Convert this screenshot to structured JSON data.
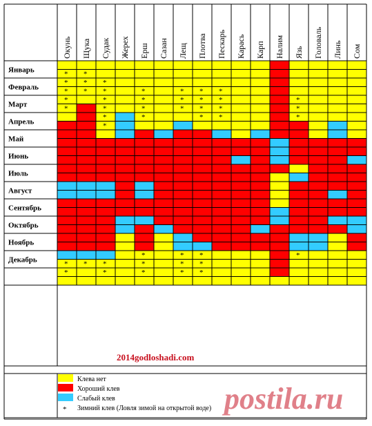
{
  "colors": {
    "none": "#ffff00",
    "good": "#ff0000",
    "weak": "#33ccff",
    "grid": "#000000"
  },
  "legend": [
    {
      "key": "none",
      "label": "Клева нет"
    },
    {
      "key": "good",
      "label": "Хороший клев"
    },
    {
      "key": "weak",
      "label": "Слабый клев"
    },
    {
      "key": "star",
      "symbol": "*",
      "label": "Зимний клев (Ловля зимой на открытой воде)"
    }
  ],
  "site_text": "2014godloshadi.com",
  "watermark": "postila.ru",
  "table": {
    "fish": [
      "Окунь",
      "Щука",
      "Судак",
      "Жерех",
      "Ерш",
      "Сазан",
      "Лещ",
      "Плотва",
      "Пескарь",
      "Карась",
      "Карп",
      "Налим",
      "Язь",
      "Головаль",
      "Линь",
      "Сом"
    ],
    "months": [
      "Январь",
      "Февраль",
      "Март",
      "Апрель",
      "Май",
      "Июнь",
      "Июль",
      "Август",
      "Сентябрь",
      "Октябрь",
      "Ноябрь",
      "Декабрь"
    ],
    "grid": [
      "YYYYYYYYYYYRYYYY",
      "YYYYYYYYYYYRYYYY",
      "YYYYYYYYYYYRYYYY",
      "YYYYYYYYYYYRYYYY",
      "YYYYYYYYYYYRYYYY",
      "YRYYYYYYYYYRYYYY",
      "YRYBYYYYYYYRYYYY",
      "RRYBYYBYYYYRRYBY",
      "RRYBRBRRBYBRRYBY",
      "RRRRRRRRRRRBRRRR",
      "RRRRRRRRRRRBRRRR",
      "RRRRRRRRRBRBRRRB",
      "RRRRRRRRRRRRYRRR",
      "RRRRRRRRRRRYBRRR",
      "BBBRBRRRRRRYRRRR",
      "BBBRBRRRRRRYRRBR",
      "RRRRRRRRRRRYRRRR",
      "RRRRRRRRRRRBRRRR",
      "RRRBBRRRRRRBRRBB",
      "RRRBRBRRRRBRRRRB",
      "RRRYRYBRRRRRBBYR",
      "RRRYRYBBRRRRBBYR",
      "BBBYYYYYYYYRYYYY",
      "YYYYYYYYYYYRYYYY",
      "YYYYYYYYYYYRYYYY",
      "YYYYYYYYYYYYYYYY"
    ],
    "stars": [
      [
        1,
        0
      ],
      [
        1,
        1
      ],
      [
        2,
        0
      ],
      [
        2,
        1
      ],
      [
        2,
        2
      ],
      [
        3,
        0
      ],
      [
        3,
        1
      ],
      [
        3,
        2
      ],
      [
        3,
        4
      ],
      [
        3,
        6
      ],
      [
        3,
        7
      ],
      [
        3,
        8
      ],
      [
        4,
        0
      ],
      [
        4,
        2
      ],
      [
        4,
        4
      ],
      [
        4,
        6
      ],
      [
        4,
        7
      ],
      [
        4,
        8
      ],
      [
        4,
        12
      ],
      [
        5,
        0
      ],
      [
        5,
        2
      ],
      [
        5,
        4
      ],
      [
        5,
        6
      ],
      [
        5,
        7
      ],
      [
        5,
        8
      ],
      [
        5,
        12
      ],
      [
        6,
        2
      ],
      [
        6,
        4
      ],
      [
        6,
        7
      ],
      [
        6,
        8
      ],
      [
        6,
        12
      ],
      [
        7,
        2
      ],
      [
        22,
        4
      ],
      [
        22,
        6
      ],
      [
        22,
        7
      ],
      [
        22,
        12
      ],
      [
        23,
        0
      ],
      [
        23,
        1
      ],
      [
        23,
        2
      ],
      [
        23,
        4
      ],
      [
        23,
        6
      ],
      [
        23,
        7
      ],
      [
        24,
        0
      ],
      [
        24,
        2
      ],
      [
        24,
        4
      ],
      [
        24,
        6
      ],
      [
        24,
        7
      ]
    ]
  }
}
